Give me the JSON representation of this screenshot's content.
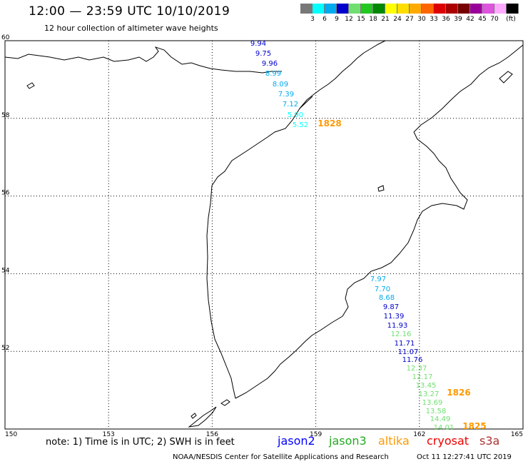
{
  "header": {
    "title": "12:00 — 23:59 UTC 10/10/2019",
    "subtitle": "12 hour collection of altimeter wave heights"
  },
  "legend": {
    "colors": [
      "#787878",
      "#00ffff",
      "#00aaee",
      "#0000cc",
      "#6fe06f",
      "#22c822",
      "#008800",
      "#ffff00",
      "#ffdd00",
      "#ffaa00",
      "#ff6600",
      "#dd0000",
      "#aa0000",
      "#770000",
      "#990099",
      "#dd55dd",
      "#ffaaff",
      "#000000"
    ],
    "labels": [
      "3",
      "6",
      "9",
      "12",
      "15",
      "18",
      "21",
      "24",
      "27",
      "30",
      "33",
      "36",
      "39",
      "42",
      "45",
      "70",
      "(ft)"
    ],
    "label_positions": [
      1,
      2,
      3,
      4,
      5,
      6,
      7,
      8,
      9,
      10,
      11,
      12,
      13,
      14,
      15,
      16,
      17
    ]
  },
  "map": {
    "lon_ticks": [
      150,
      153,
      156,
      159,
      162,
      165
    ],
    "lat_ticks": [
      50,
      52,
      54,
      56,
      58,
      60
    ],
    "lon_labels": [
      "150",
      "153",
      "156",
      "159",
      "162",
      "165"
    ],
    "lat_labels": [
      "50",
      "52",
      "54",
      "56",
      "58",
      "60"
    ]
  },
  "tracks": [
    {
      "satellite": "north",
      "time": "1828",
      "points": [
        {
          "value": "9.94",
          "color": "#0000cc"
        },
        {
          "value": "9.75",
          "color": "#0000cc"
        },
        {
          "value": "9.96",
          "color": "#0000cc"
        },
        {
          "value": "8.99",
          "color": "#00aaee"
        },
        {
          "value": "8.09",
          "color": "#00aaee"
        },
        {
          "value": "7.39",
          "color": "#00aaee"
        },
        {
          "value": "7.12",
          "color": "#00aaee"
        },
        {
          "value": "5.90",
          "color": "#00ffff"
        },
        {
          "value": "5.52",
          "color": "#00ffff"
        }
      ]
    },
    {
      "satellite": "south",
      "times": [
        "1826",
        "1825"
      ],
      "points": [
        {
          "value": "7.97",
          "color": "#00aaee"
        },
        {
          "value": "7.70",
          "color": "#00aaee"
        },
        {
          "value": "8.68",
          "color": "#00aaee"
        },
        {
          "value": "9.87",
          "color": "#0000cc"
        },
        {
          "value": "11.39",
          "color": "#0000cc"
        },
        {
          "value": "11.93",
          "color": "#0000cc"
        },
        {
          "value": "12.16",
          "color": "#6fe06f"
        },
        {
          "value": "11.71",
          "color": "#0000cc"
        },
        {
          "value": "11.07",
          "color": "#0000cc"
        },
        {
          "value": "11.76",
          "color": "#0000cc"
        },
        {
          "value": "12.37",
          "color": "#6fe06f"
        },
        {
          "value": "12.17",
          "color": "#6fe06f"
        },
        {
          "value": "13.45",
          "color": "#6fe06f"
        },
        {
          "value": "13.27",
          "color": "#6fe06f"
        },
        {
          "value": "13.69",
          "color": "#6fe06f"
        },
        {
          "value": "13.58",
          "color": "#6fe06f"
        },
        {
          "value": "14.49",
          "color": "#6fe06f"
        },
        {
          "value": "14.01",
          "color": "#6fe06f"
        }
      ]
    }
  ],
  "note": "note:  1) Time is in UTC;  2) SWH is in feet",
  "satellites": [
    {
      "name": "jason2",
      "color": "#0000ff"
    },
    {
      "name": "jason3",
      "color": "#22aa22"
    },
    {
      "name": "altika",
      "color": "#ff9900"
    },
    {
      "name": "cryosat",
      "color": "#ee0000"
    },
    {
      "name": "s3a",
      "color": "#aa3333"
    }
  ],
  "footer": {
    "agency": "NOAA/NESDIS Center for Satellite Applications and Research",
    "timestamp": "Oct 11 12:27:41 UTC 2019"
  },
  "colors": {
    "time_label": "#ff9900",
    "land_outline": "#000000",
    "grid": "#000000"
  }
}
